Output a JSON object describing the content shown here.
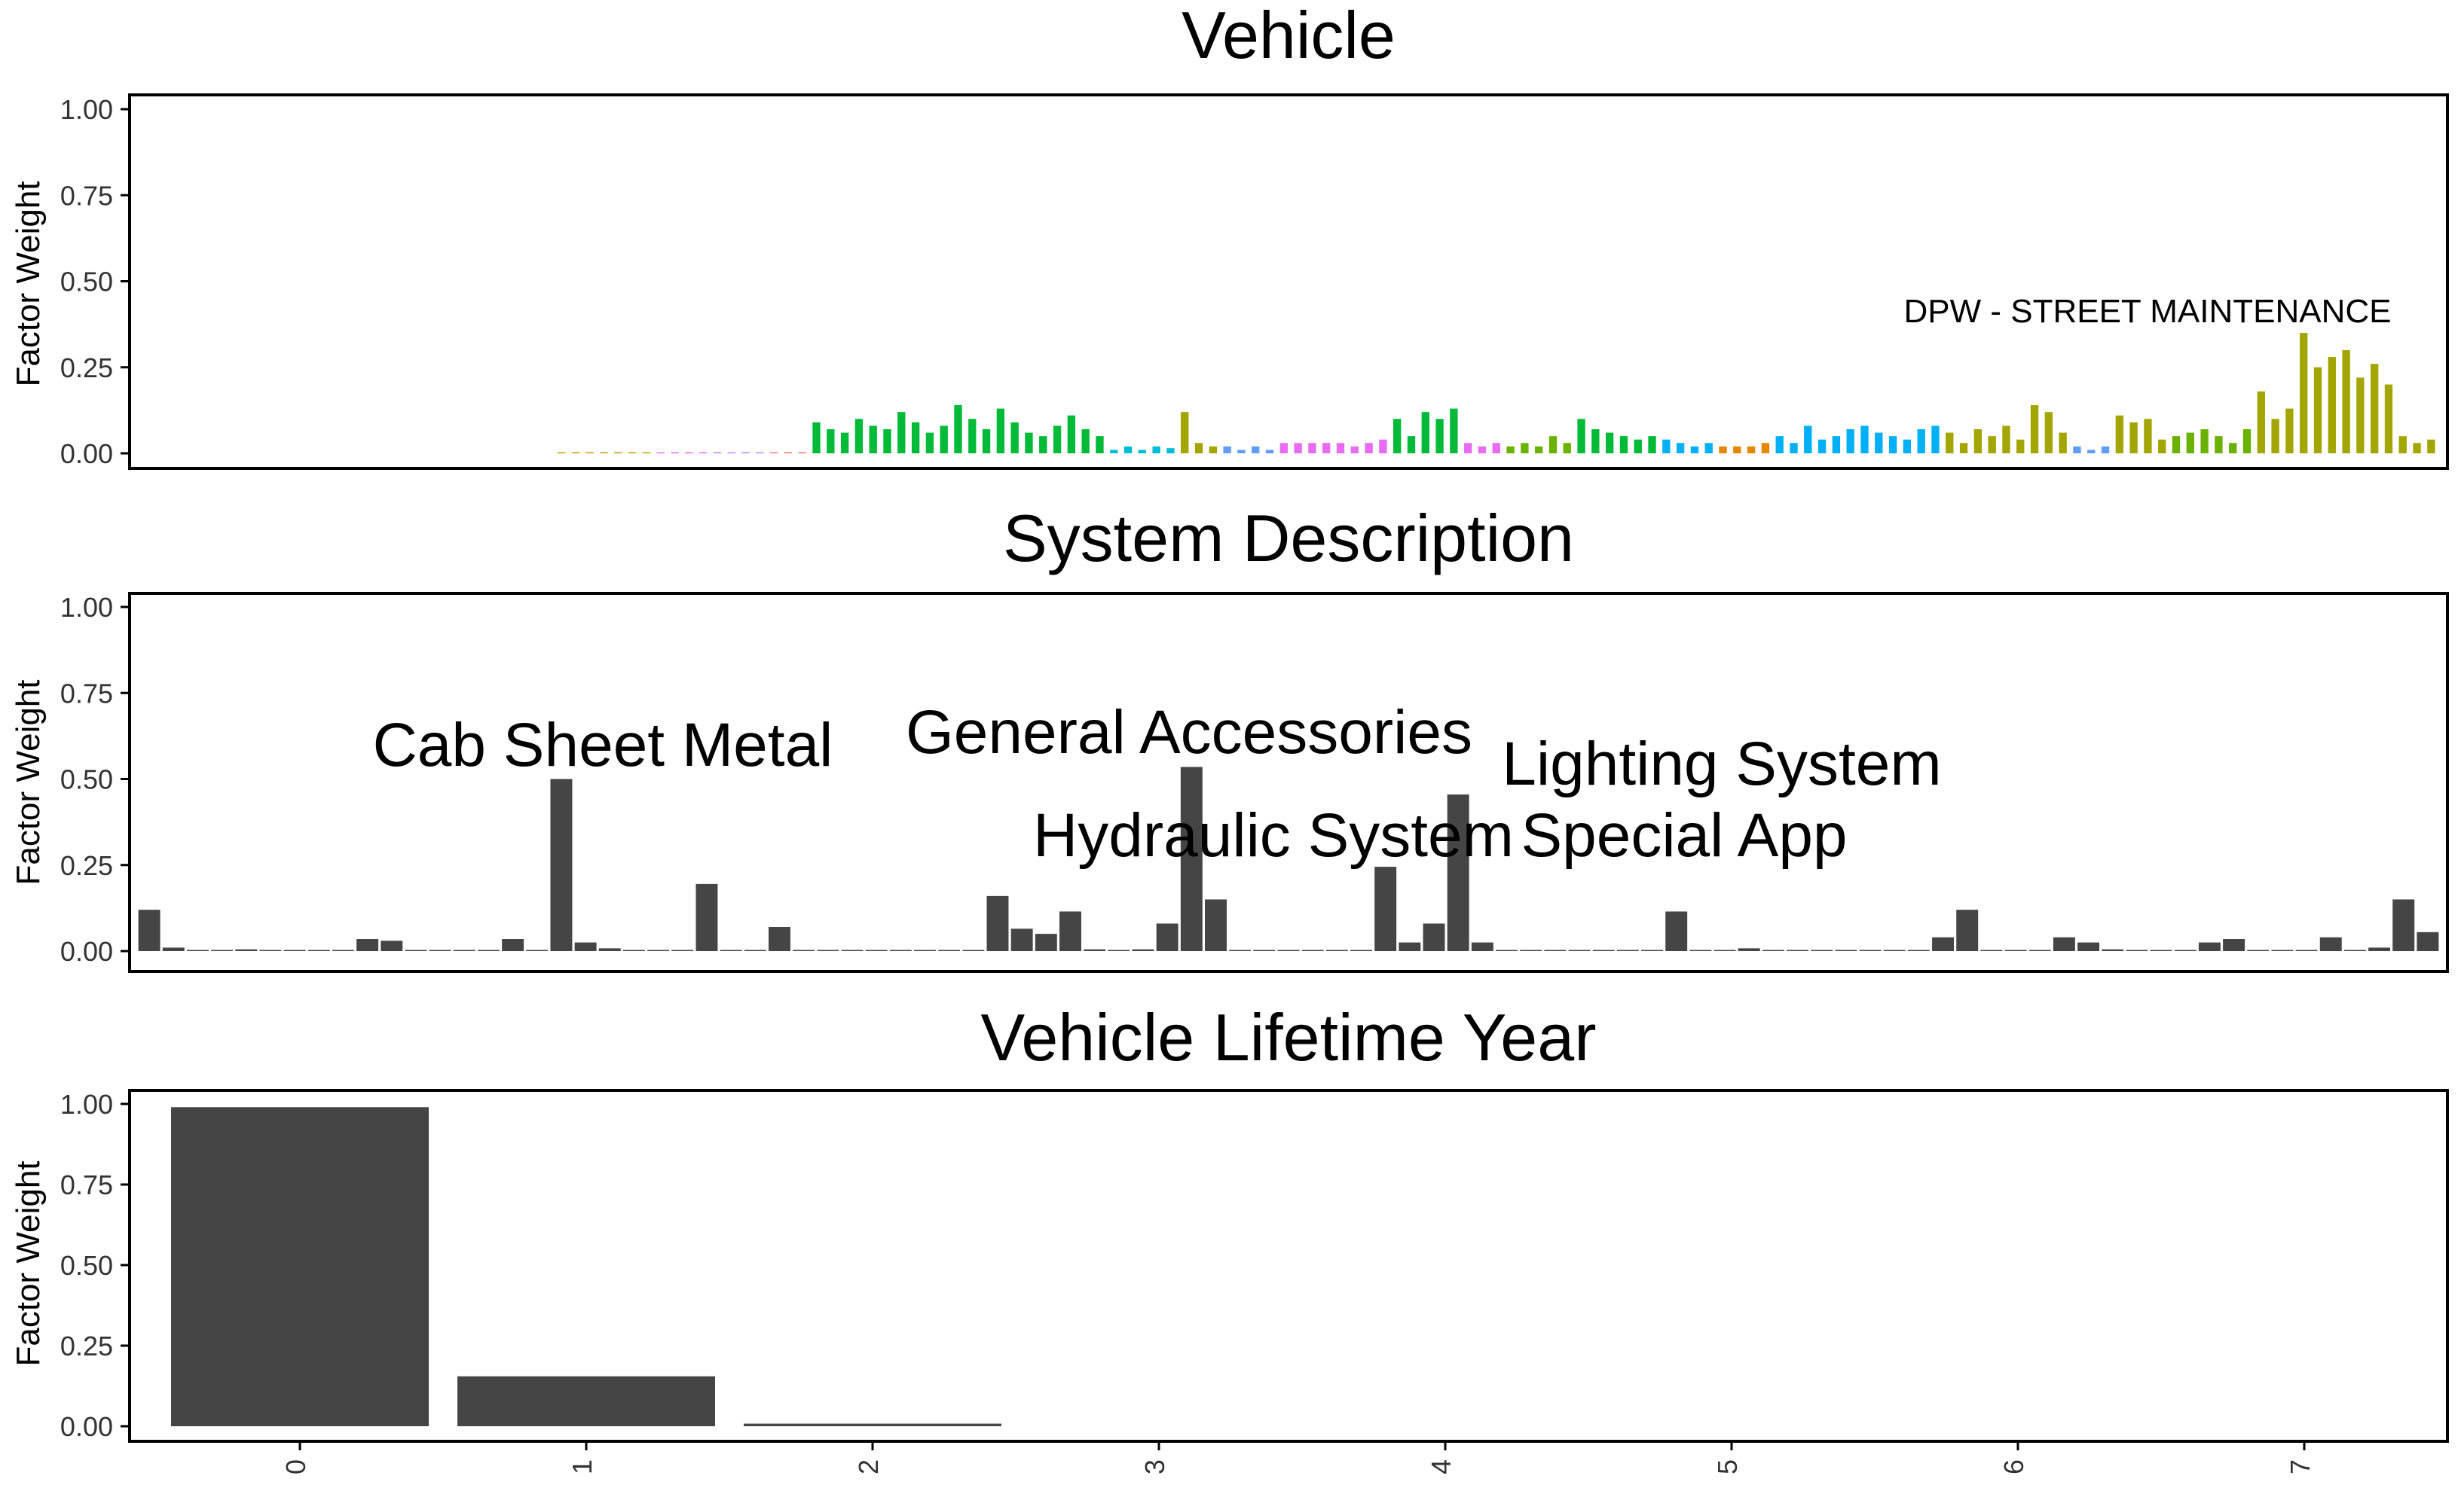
{
  "chart_data": [
    {
      "type": "bar",
      "title": "Vehicle",
      "ylabel": "Factor Weight",
      "ylim": [
        0,
        1.05
      ],
      "yticks": [
        "0.00",
        "0.25",
        "0.50",
        "0.75",
        "1.00"
      ],
      "legend": "none",
      "bar_colors_by_group": [
        "#f8766d",
        "#e58700",
        "#c99800",
        "#a3a500",
        "#6bb100",
        "#00ba38",
        "#00bf7d",
        "#00c0af",
        "#00bcd8",
        "#00b0f6",
        "#619cff",
        "#b983ff",
        "#e76bf3",
        "#fd61d1",
        "#ff67a4"
      ],
      "groups": [
        {
          "color": "#c99800",
          "values": [
            0.002,
            0.001,
            0.003,
            0.001,
            0.002,
            0.001,
            0.002
          ]
        },
        {
          "color": "#e76bf3",
          "values": [
            0.001,
            0.002,
            0.001,
            0.001
          ]
        },
        {
          "color": "#b983ff",
          "values": [
            0.001,
            0.001,
            0.002,
            0.001
          ]
        },
        {
          "color": "#f8766d",
          "values": [
            0.001,
            0.002,
            0.001
          ]
        },
        {
          "color": "#00ba38",
          "values": [
            0.09,
            0.07,
            0.06,
            0.1,
            0.08,
            0.07,
            0.12,
            0.09,
            0.06,
            0.08,
            0.14,
            0.1,
            0.07,
            0.13,
            0.09,
            0.06,
            0.05,
            0.08,
            0.11,
            0.07,
            0.05
          ]
        },
        {
          "color": "#00bcd8",
          "values": [
            0.01,
            0.02,
            0.01,
            0.02,
            0.015
          ]
        },
        {
          "color": "#a3a500",
          "values": [
            0.12,
            0.03,
            0.02
          ]
        },
        {
          "color": "#619cff",
          "values": [
            0.02,
            0.01,
            0.02,
            0.01
          ]
        },
        {
          "color": "#e76bf3",
          "values": [
            0.03,
            0.03,
            0.03,
            0.03,
            0.03,
            0.02,
            0.03,
            0.04
          ]
        },
        {
          "color": "#00ba38",
          "values": [
            0.1,
            0.05,
            0.12,
            0.1,
            0.13
          ]
        },
        {
          "color": "#e76bf3",
          "values": [
            0.03,
            0.02,
            0.03
          ]
        },
        {
          "color": "#6bb100",
          "values": [
            0.02,
            0.03,
            0.02,
            0.05,
            0.03
          ]
        },
        {
          "color": "#00ba38",
          "values": [
            0.1,
            0.07,
            0.06,
            0.05,
            0.04,
            0.05
          ]
        },
        {
          "color": "#00b0f6",
          "values": [
            0.04,
            0.03,
            0.02,
            0.03
          ]
        },
        {
          "color": "#e58700",
          "values": [
            0.02,
            0.02,
            0.02,
            0.03
          ]
        },
        {
          "color": "#00b0f6",
          "values": [
            0.05,
            0.03,
            0.08,
            0.04,
            0.05,
            0.07,
            0.08,
            0.06,
            0.05,
            0.04,
            0.07,
            0.08
          ]
        },
        {
          "color": "#a3a500",
          "values": [
            0.06,
            0.03,
            0.07,
            0.05
          ]
        },
        {
          "color": "#a3a500",
          "values": [
            0.08,
            0.04,
            0.14,
            0.12,
            0.06
          ]
        },
        {
          "color": "#619cff",
          "values": [
            0.02,
            0.01,
            0.02
          ]
        },
        {
          "color": "#a3a500",
          "values": [
            0.11,
            0.09,
            0.1,
            0.04
          ]
        },
        {
          "color": "#6bb100",
          "values": [
            0.05,
            0.06,
            0.07,
            0.05,
            0.03,
            0.07
          ]
        },
        {
          "color": "#a3a500",
          "values": [
            0.18,
            0.1,
            0.13,
            0.35,
            0.25,
            0.28,
            0.3,
            0.22,
            0.26,
            0.2,
            0.05,
            0.03,
            0.04
          ]
        }
      ],
      "annotations": [
        {
          "text": "DPW - STREET MAINTENANCE",
          "y": 0.4
        }
      ]
    },
    {
      "type": "bar",
      "title": "System Description",
      "ylabel": "Factor Weight",
      "ylim": [
        0,
        1.05
      ],
      "yticks": [
        "0.00",
        "0.25",
        "0.50",
        "0.75",
        "1.00"
      ],
      "bar_color": "#454545",
      "values": [
        0.12,
        0.01,
        0,
        0,
        0.005,
        0,
        0,
        0,
        0,
        0.035,
        0.03,
        0,
        0,
        0,
        0,
        0.035,
        0,
        0.5,
        0.025,
        0.008,
        0,
        0,
        0.002,
        0.195,
        0,
        0,
        0.07,
        0.002,
        0,
        0,
        0,
        0,
        0,
        0,
        0,
        0.16,
        0.065,
        0.05,
        0.115,
        0.005,
        0,
        0.005,
        0.08,
        0.535,
        0.15,
        0,
        0.003,
        0.002,
        0,
        0,
        0,
        0.245,
        0.025,
        0.08,
        0.455,
        0.025,
        0,
        0,
        0,
        0,
        0,
        0,
        0,
        0.115,
        0,
        0,
        0.008,
        0,
        0,
        0,
        0,
        0,
        0,
        0.002,
        0.04,
        0.12,
        0,
        0,
        0,
        0.04,
        0.025,
        0.005,
        0,
        0,
        0,
        0.025,
        0.035,
        0,
        0,
        0,
        0.04,
        0,
        0.01,
        0.15,
        0.055
      ],
      "annotations": [
        {
          "text": "Cab Sheet Metal",
          "y": 0.545
        },
        {
          "text": "General Accessories",
          "y": 0.585
        },
        {
          "text": "Hydraulic System",
          "y": 0.33
        },
        {
          "text": "Lighting System",
          "y": 0.49
        },
        {
          "text": "Special App",
          "y": 0.33
        }
      ]
    },
    {
      "type": "bar",
      "title": "Vehicle Lifetime Year",
      "ylabel": "Factor Weight",
      "ylim": [
        0,
        1.05
      ],
      "yticks": [
        "0.00",
        "0.25",
        "0.50",
        "0.75",
        "1.00"
      ],
      "bar_color": "#454545",
      "categories": [
        "0",
        "1",
        "2",
        "3",
        "4",
        "5",
        "6",
        "7"
      ],
      "values": [
        0.99,
        0.155,
        0.008,
        0,
        0,
        0,
        0,
        0
      ]
    }
  ]
}
